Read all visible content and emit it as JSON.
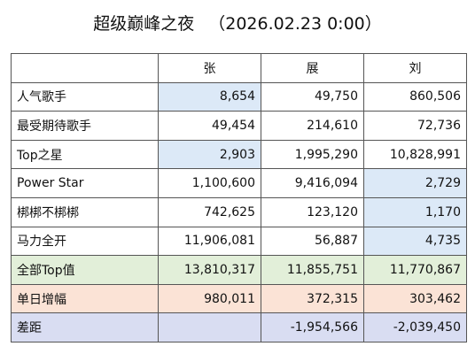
{
  "title": {
    "event": "超级巅峰之夜",
    "timestamp": "（2026.02.23 0:00）"
  },
  "table": {
    "headers": [
      "张",
      "展",
      "刘"
    ],
    "rows": [
      {
        "label": "人气歌手",
        "values": [
          "8,654",
          "49,750",
          "860,506"
        ]
      },
      {
        "label": "最受期待歌手",
        "values": [
          "49,454",
          "214,610",
          "72,736"
        ]
      },
      {
        "label": "Top之星",
        "values": [
          "2,903",
          "1,995,290",
          "10,828,991"
        ]
      },
      {
        "label": "Power Star",
        "values": [
          "1,100,600",
          "9,416,094",
          "2,729"
        ]
      },
      {
        "label": "梆梆不梆梆",
        "values": [
          "742,625",
          "123,120",
          "1,170"
        ]
      },
      {
        "label": "马力全开",
        "values": [
          "11,906,081",
          "56,887",
          "4,735"
        ]
      },
      {
        "label": "全部Top值",
        "values": [
          "13,810,317",
          "11,855,751",
          "11,770,867"
        ]
      },
      {
        "label": "单日增幅",
        "values": [
          "980,011",
          "372,315",
          "303,462"
        ]
      },
      {
        "label": "差距",
        "values": [
          "",
          "-1,954,566",
          "-2,039,450"
        ]
      }
    ]
  },
  "colors": {
    "highlight_min": "#dce9f7",
    "total_row": "#e2efd9",
    "daily_row": "#fbe3d6",
    "gap_row": "#d9ddf2"
  }
}
